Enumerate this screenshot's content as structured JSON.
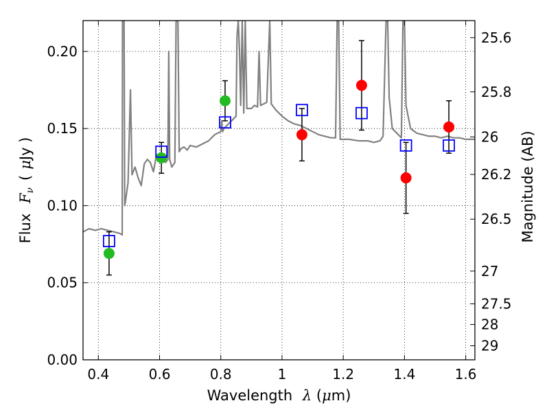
{
  "chart_data": {
    "type": "scatter",
    "xlabel": {
      "prefix": "Wavelength",
      "symbol": "λ",
      "unit_open": "(",
      "unit_mu": "μ",
      "unit_rest": "m)"
    },
    "ylabel": {
      "prefix": "Flux",
      "symbol": "F",
      "subscript": "ν",
      "unit_open": "(",
      "unit_mu": "μ",
      "unit_rest": "Jy )"
    },
    "y2label": "Magnitude (AB)",
    "xlim": [
      0.35,
      1.63
    ],
    "ylim": [
      0.0,
      0.22
    ],
    "grid": true,
    "x_ticks": [
      {
        "value": 0.4,
        "label": "0.4"
      },
      {
        "value": 0.6,
        "label": "0.6"
      },
      {
        "value": 0.8,
        "label": "0.8"
      },
      {
        "value": 1.0,
        "label": "1"
      },
      {
        "value": 1.2,
        "label": "1.2"
      },
      {
        "value": 1.4,
        "label": "1.4"
      },
      {
        "value": 1.6,
        "label": "1.6"
      }
    ],
    "y_ticks": [
      {
        "value": 0.0,
        "label": "0.00"
      },
      {
        "value": 0.05,
        "label": "0.05"
      },
      {
        "value": 0.1,
        "label": "0.10"
      },
      {
        "value": 0.15,
        "label": "0.15"
      },
      {
        "value": 0.2,
        "label": "0.20"
      }
    ],
    "y2_ticks": [
      {
        "value": 25.6,
        "label": "25.6"
      },
      {
        "value": 25.8,
        "label": "25.8"
      },
      {
        "value": 26.0,
        "label": "26"
      },
      {
        "value": 26.2,
        "label": "26.2"
      },
      {
        "value": 26.5,
        "label": "26.5"
      },
      {
        "value": 27.0,
        "label": "27"
      },
      {
        "value": 27.5,
        "label": "27.5"
      },
      {
        "value": 28.0,
        "label": "28"
      },
      {
        "value": 29.0,
        "label": "29"
      }
    ],
    "series": [
      {
        "marker": "circle",
        "color": "#22bb22",
        "points": [
          {
            "x": 0.435,
            "y": 0.069,
            "err": 0.014
          },
          {
            "x": 0.606,
            "y": 0.131,
            "err": 0.01
          },
          {
            "x": 0.814,
            "y": 0.168,
            "err": 0.013
          }
        ]
      },
      {
        "marker": "circle",
        "color": "#ff0000",
        "points": [
          {
            "x": 1.065,
            "y": 0.146,
            "err": 0.017
          },
          {
            "x": 1.26,
            "y": 0.178,
            "err": 0.029
          },
          {
            "x": 1.405,
            "y": 0.118,
            "err": 0.023
          },
          {
            "x": 1.545,
            "y": 0.151,
            "err": 0.017
          }
        ]
      },
      {
        "marker": "open-square",
        "color": "#0000ff",
        "points": [
          {
            "x": 0.435,
            "y": 0.077
          },
          {
            "x": 0.606,
            "y": 0.135
          },
          {
            "x": 0.814,
            "y": 0.154
          },
          {
            "x": 1.065,
            "y": 0.162
          },
          {
            "x": 1.26,
            "y": 0.16
          },
          {
            "x": 1.405,
            "y": 0.139
          },
          {
            "x": 1.545,
            "y": 0.139
          }
        ]
      }
    ],
    "model_spectrum": {
      "color": "#808080",
      "points": [
        [
          0.35,
          0.083
        ],
        [
          0.37,
          0.085
        ],
        [
          0.39,
          0.084
        ],
        [
          0.41,
          0.085
        ],
        [
          0.43,
          0.084
        ],
        [
          0.45,
          0.083
        ],
        [
          0.47,
          0.082
        ],
        [
          0.478,
          0.081
        ],
        [
          0.479,
          0.22
        ],
        [
          0.484,
          0.22
        ],
        [
          0.486,
          0.1
        ],
        [
          0.49,
          0.105
        ],
        [
          0.497,
          0.115
        ],
        [
          0.505,
          0.175
        ],
        [
          0.51,
          0.12
        ],
        [
          0.52,
          0.125
        ],
        [
          0.53,
          0.118
        ],
        [
          0.54,
          0.113
        ],
        [
          0.55,
          0.127
        ],
        [
          0.56,
          0.13
        ],
        [
          0.57,
          0.128
        ],
        [
          0.58,
          0.122
        ],
        [
          0.59,
          0.133
        ],
        [
          0.6,
          0.132
        ],
        [
          0.61,
          0.13
        ],
        [
          0.62,
          0.128
        ],
        [
          0.627,
          0.13
        ],
        [
          0.63,
          0.2
        ],
        [
          0.633,
          0.13
        ],
        [
          0.64,
          0.125
        ],
        [
          0.65,
          0.128
        ],
        [
          0.654,
          0.22
        ],
        [
          0.66,
          0.22
        ],
        [
          0.664,
          0.135
        ],
        [
          0.67,
          0.137
        ],
        [
          0.68,
          0.138
        ],
        [
          0.69,
          0.136
        ],
        [
          0.7,
          0.139
        ],
        [
          0.72,
          0.138
        ],
        [
          0.74,
          0.14
        ],
        [
          0.76,
          0.142
        ],
        [
          0.78,
          0.146
        ],
        [
          0.79,
          0.147
        ],
        [
          0.8,
          0.148
        ],
        [
          0.803,
          0.155
        ],
        [
          0.806,
          0.148
        ],
        [
          0.81,
          0.15
        ],
        [
          0.82,
          0.152
        ],
        [
          0.83,
          0.154
        ],
        [
          0.84,
          0.156
        ],
        [
          0.85,
          0.158
        ],
        [
          0.853,
          0.21
        ],
        [
          0.857,
          0.22
        ],
        [
          0.861,
          0.2
        ],
        [
          0.865,
          0.165
        ],
        [
          0.87,
          0.22
        ],
        [
          0.875,
          0.16
        ],
        [
          0.88,
          0.22
        ],
        [
          0.885,
          0.163
        ],
        [
          0.9,
          0.163
        ],
        [
          0.91,
          0.165
        ],
        [
          0.92,
          0.164
        ],
        [
          0.925,
          0.2
        ],
        [
          0.93,
          0.165
        ],
        [
          0.95,
          0.167
        ],
        [
          0.96,
          0.22
        ],
        [
          0.965,
          0.166
        ],
        [
          0.98,
          0.162
        ],
        [
          1.0,
          0.158
        ],
        [
          1.02,
          0.155
        ],
        [
          1.04,
          0.153
        ],
        [
          1.06,
          0.152
        ],
        [
          1.08,
          0.15
        ],
        [
          1.1,
          0.148
        ],
        [
          1.12,
          0.146
        ],
        [
          1.14,
          0.145
        ],
        [
          1.16,
          0.144
        ],
        [
          1.175,
          0.144
        ],
        [
          1.18,
          0.22
        ],
        [
          1.185,
          0.22
        ],
        [
          1.19,
          0.143
        ],
        [
          1.2,
          0.143
        ],
        [
          1.22,
          0.143
        ],
        [
          1.25,
          0.142
        ],
        [
          1.28,
          0.142
        ],
        [
          1.3,
          0.141
        ],
        [
          1.32,
          0.142
        ],
        [
          1.33,
          0.145
        ],
        [
          1.34,
          0.22
        ],
        [
          1.345,
          0.22
        ],
        [
          1.35,
          0.17
        ],
        [
          1.36,
          0.15
        ],
        [
          1.38,
          0.146
        ],
        [
          1.39,
          0.144
        ],
        [
          1.395,
          0.22
        ],
        [
          1.4,
          0.22
        ],
        [
          1.405,
          0.165
        ],
        [
          1.42,
          0.15
        ],
        [
          1.44,
          0.147
        ],
        [
          1.46,
          0.146
        ],
        [
          1.48,
          0.145
        ],
        [
          1.5,
          0.145
        ],
        [
          1.52,
          0.144
        ],
        [
          1.54,
          0.145
        ],
        [
          1.56,
          0.144
        ],
        [
          1.58,
          0.144
        ],
        [
          1.6,
          0.143
        ],
        [
          1.63,
          0.143
        ]
      ]
    }
  }
}
